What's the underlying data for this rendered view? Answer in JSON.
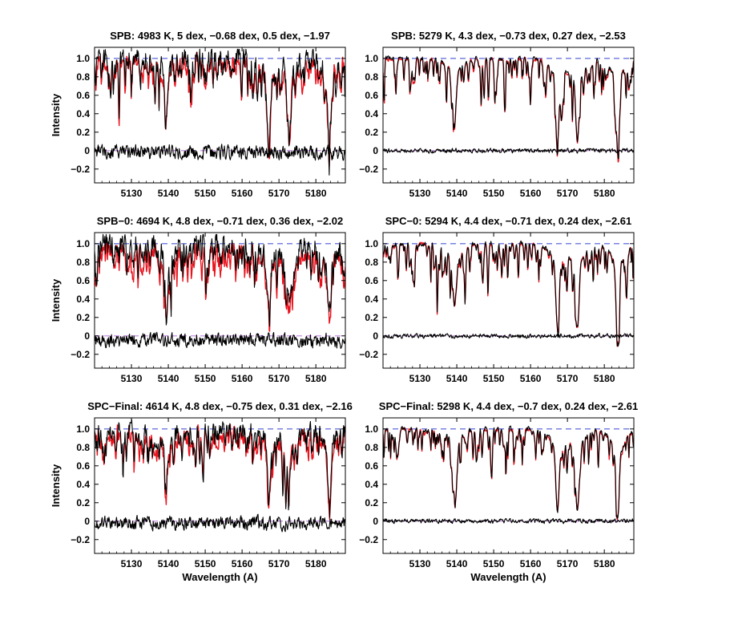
{
  "figure": {
    "background": "#ffffff"
  },
  "colors": {
    "observed": "#000000",
    "model": "#e8141e",
    "continuum": "#4b5ad8",
    "zero": "#c98de6",
    "axis": "#000000"
  },
  "chart_data": [
    {
      "type": "line",
      "title": "SPB: 4983 K, 5 dex, −0.68 dex, 0.5 dex, −1.97",
      "ylabel": "Intensity",
      "xlabel": "",
      "xlim": [
        5120,
        5188
      ],
      "ylim": [
        -0.35,
        1.12
      ],
      "xticks": [
        5130,
        5140,
        5150,
        5160,
        5170,
        5180
      ],
      "xticklabels": [
        "5130",
        "5140",
        "5150",
        "5160",
        "5170",
        "5180"
      ],
      "yticks": [
        -0.2,
        0,
        0.2,
        0.4,
        0.6,
        0.8,
        1.0
      ],
      "yticklabels": [
        "−0.2",
        "0",
        "0.2",
        "0.4",
        "0.6",
        "0.8",
        "1.0"
      ],
      "reference_lines": [
        {
          "y": 1.0,
          "style": "dashed",
          "role": "continuum"
        },
        {
          "y": 0,
          "style": "dashed",
          "role": "zero"
        }
      ],
      "series": [
        {
          "role": "model",
          "color": "#e8141e",
          "noise": 0.14,
          "offset": -0.04
        },
        {
          "role": "observed",
          "color": "#000000",
          "noise": 0.19,
          "offset": 0.0
        },
        {
          "role": "residual",
          "color": "#000000",
          "noise": 0.08,
          "offset": -0.02
        }
      ],
      "strong_lines": [
        {
          "x": 5167.3,
          "depth": 0.62
        },
        {
          "x": 5172.7,
          "depth": 0.55
        },
        {
          "x": 5183.6,
          "depth": 0.62
        },
        {
          "x": 5139.4,
          "depth": 0.45
        }
      ]
    },
    {
      "type": "line",
      "title": "SPB: 5279 K, 4.3 dex, −0.73 dex, 0.27 dex, −2.53",
      "ylabel": "",
      "xlabel": "",
      "xlim": [
        5120,
        5188
      ],
      "ylim": [
        -0.35,
        1.12
      ],
      "xticks": [
        5130,
        5140,
        5150,
        5160,
        5170,
        5180
      ],
      "xticklabels": [
        "5130",
        "5140",
        "5150",
        "5160",
        "5170",
        "5180"
      ],
      "yticks": [
        -0.2,
        0,
        0.2,
        0.4,
        0.6,
        0.8,
        1.0
      ],
      "yticklabels": [
        "−0.2",
        "0",
        "0.2",
        "0.4",
        "0.6",
        "0.8",
        "1.0"
      ],
      "reference_lines": [
        {
          "y": 1.0,
          "style": "dashed",
          "role": "continuum"
        },
        {
          "y": 0,
          "style": "dashed",
          "role": "zero"
        }
      ],
      "series": [
        {
          "role": "model",
          "color": "#e8141e",
          "noise": 0.03,
          "offset": -0.01
        },
        {
          "role": "observed",
          "color": "#000000",
          "noise": 0.04,
          "offset": 0.0
        },
        {
          "role": "residual",
          "color": "#000000",
          "noise": 0.025,
          "offset": 0.0
        }
      ],
      "strong_lines": [
        {
          "x": 5167.3,
          "depth": 0.72
        },
        {
          "x": 5172.7,
          "depth": 0.72
        },
        {
          "x": 5183.6,
          "depth": 0.75
        },
        {
          "x": 5139.4,
          "depth": 0.55
        }
      ]
    },
    {
      "type": "line",
      "title": "SPB−0: 4694 K, 4.8 dex, −0.71 dex, 0.36 dex, −2.02",
      "ylabel": "Intensity",
      "xlabel": "",
      "xlim": [
        5120,
        5188
      ],
      "ylim": [
        -0.35,
        1.12
      ],
      "xticks": [
        5130,
        5140,
        5150,
        5160,
        5170,
        5180
      ],
      "xticklabels": [
        "5130",
        "5140",
        "5150",
        "5160",
        "5170",
        "5180"
      ],
      "yticks": [
        -0.2,
        0,
        0.2,
        0.4,
        0.6,
        0.8,
        1.0
      ],
      "yticklabels": [
        "−0.2",
        "0",
        "0.2",
        "0.4",
        "0.6",
        "0.8",
        "1.0"
      ],
      "reference_lines": [
        {
          "y": 1.0,
          "style": "dashed",
          "role": "continuum"
        },
        {
          "y": 0,
          "style": "dashed",
          "role": "zero"
        }
      ],
      "series": [
        {
          "role": "model",
          "color": "#e8141e",
          "noise": 0.16,
          "offset": -0.08
        },
        {
          "role": "observed",
          "color": "#000000",
          "noise": 0.18,
          "offset": 0.0
        },
        {
          "role": "residual",
          "color": "#000000",
          "noise": 0.08,
          "offset": -0.05
        }
      ],
      "strong_lines": [
        {
          "x": 5167.3,
          "depth": 0.55
        },
        {
          "x": 5172.7,
          "depth": 0.55
        },
        {
          "x": 5183.6,
          "depth": 0.62
        },
        {
          "x": 5139.4,
          "depth": 0.45
        }
      ]
    },
    {
      "type": "line",
      "title": "SPC−0: 5294 K, 4.4 dex, −0.71 dex, 0.24 dex, −2.61",
      "ylabel": "",
      "xlabel": "",
      "xlim": [
        5120,
        5188
      ],
      "ylim": [
        -0.35,
        1.12
      ],
      "xticks": [
        5130,
        5140,
        5150,
        5160,
        5170,
        5180
      ],
      "xticklabels": [
        "5130",
        "5140",
        "5150",
        "5160",
        "5170",
        "5180"
      ],
      "yticks": [
        -0.2,
        0,
        0.2,
        0.4,
        0.6,
        0.8,
        1.0
      ],
      "yticklabels": [
        "−0.2",
        "0",
        "0.2",
        "0.4",
        "0.6",
        "0.8",
        "1.0"
      ],
      "reference_lines": [
        {
          "y": 1.0,
          "style": "dashed",
          "role": "continuum"
        },
        {
          "y": 0,
          "style": "dashed",
          "role": "zero"
        }
      ],
      "series": [
        {
          "role": "model",
          "color": "#e8141e",
          "noise": 0.03,
          "offset": -0.01
        },
        {
          "role": "observed",
          "color": "#000000",
          "noise": 0.04,
          "offset": 0.0
        },
        {
          "role": "residual",
          "color": "#000000",
          "noise": 0.025,
          "offset": 0.0
        }
      ],
      "strong_lines": [
        {
          "x": 5167.3,
          "depth": 0.72
        },
        {
          "x": 5172.7,
          "depth": 0.72
        },
        {
          "x": 5183.6,
          "depth": 0.75
        },
        {
          "x": 5139.4,
          "depth": 0.55
        }
      ]
    },
    {
      "type": "line",
      "title": "SPC−Final: 4614 K, 4.8 dex, −0.75 dex, 0.31 dex, −2.16",
      "ylabel": "Intensity",
      "xlabel": "Wavelength (A)",
      "xlim": [
        5120,
        5188
      ],
      "ylim": [
        -0.35,
        1.12
      ],
      "xticks": [
        5130,
        5140,
        5150,
        5160,
        5170,
        5180
      ],
      "xticklabels": [
        "5130",
        "5140",
        "5150",
        "5160",
        "5170",
        "5180"
      ],
      "yticks": [
        -0.2,
        0,
        0.2,
        0.4,
        0.6,
        0.8,
        1.0
      ],
      "yticklabels": [
        "−0.2",
        "0",
        "0.2",
        "0.4",
        "0.6",
        "0.8",
        "1.0"
      ],
      "reference_lines": [
        {
          "y": 1.0,
          "style": "dashed",
          "role": "continuum"
        },
        {
          "y": 0,
          "style": "dashed",
          "role": "zero"
        }
      ],
      "series": [
        {
          "role": "model",
          "color": "#e8141e",
          "noise": 0.15,
          "offset": -0.06
        },
        {
          "role": "observed",
          "color": "#000000",
          "noise": 0.17,
          "offset": 0.0
        },
        {
          "role": "residual",
          "color": "#000000",
          "noise": 0.08,
          "offset": -0.02
        }
      ],
      "strong_lines": [
        {
          "x": 5167.3,
          "depth": 0.52
        },
        {
          "x": 5172.7,
          "depth": 0.45
        },
        {
          "x": 5183.6,
          "depth": 0.58
        },
        {
          "x": 5139.4,
          "depth": 0.45
        }
      ]
    },
    {
      "type": "line",
      "title": "SPC−Final: 5298 K, 4.4 dex, −0.7 dex, 0.24 dex, −2.61",
      "ylabel": "",
      "xlabel": "Wavelength (A)",
      "xlim": [
        5120,
        5188
      ],
      "ylim": [
        -0.35,
        1.12
      ],
      "xticks": [
        5130,
        5140,
        5150,
        5160,
        5170,
        5180
      ],
      "xticklabels": [
        "5130",
        "5140",
        "5150",
        "5160",
        "5170",
        "5180"
      ],
      "yticks": [
        -0.2,
        0,
        0.2,
        0.4,
        0.6,
        0.8,
        1.0
      ],
      "yticklabels": [
        "−0.2",
        "0",
        "0.2",
        "0.4",
        "0.6",
        "0.8",
        "1.0"
      ],
      "reference_lines": [
        {
          "y": 1.0,
          "style": "dashed",
          "role": "continuum"
        },
        {
          "y": 0,
          "style": "dashed",
          "role": "zero"
        }
      ],
      "series": [
        {
          "role": "model",
          "color": "#e8141e",
          "noise": 0.03,
          "offset": -0.01
        },
        {
          "role": "observed",
          "color": "#000000",
          "noise": 0.04,
          "offset": 0.0
        },
        {
          "role": "residual",
          "color": "#000000",
          "noise": 0.025,
          "offset": 0.0
        }
      ],
      "strong_lines": [
        {
          "x": 5167.3,
          "depth": 0.72
        },
        {
          "x": 5172.7,
          "depth": 0.72
        },
        {
          "x": 5183.6,
          "depth": 0.75
        },
        {
          "x": 5139.4,
          "depth": 0.55
        }
      ]
    }
  ]
}
